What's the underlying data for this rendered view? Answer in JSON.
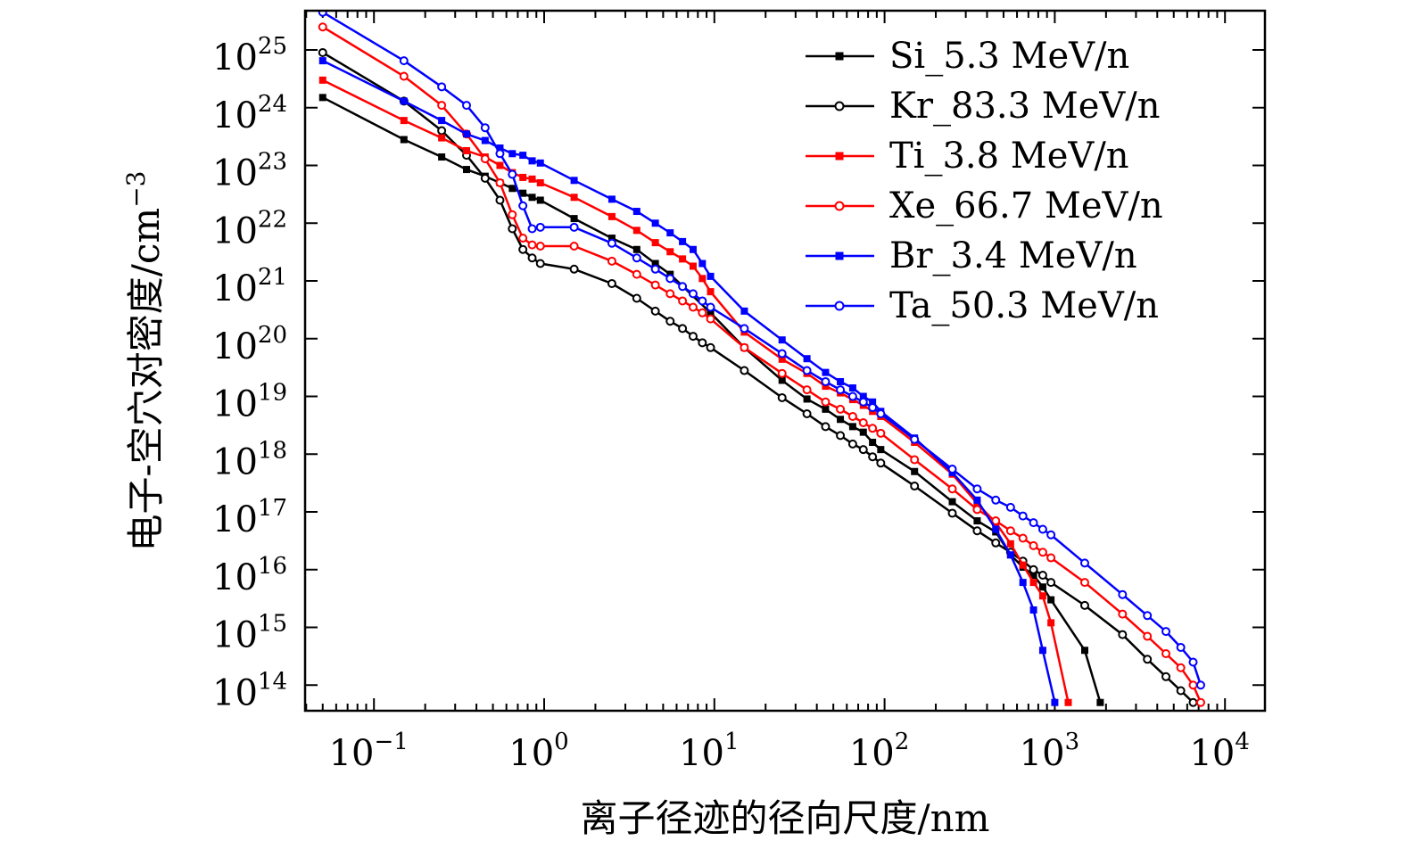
{
  "chart_data": {
    "type": "line",
    "title": "",
    "xlabel": "离子径迹的径向尺度/nm",
    "ylabel": "电子-空穴对密度/cm",
    "ylabel_unit_exp": "−3",
    "xscale": "log",
    "yscale": "log",
    "xlim": [
      0.04,
      13000
    ],
    "ylim": [
      50000000000000.0,
      1.5e+26
    ],
    "legend_position": "top-right",
    "x_ticks": [
      {
        "base": "10",
        "exp": "−1"
      },
      {
        "base": "10",
        "exp": "0"
      },
      {
        "base": "10",
        "exp": "1"
      },
      {
        "base": "10",
        "exp": "2"
      },
      {
        "base": "10",
        "exp": "3"
      },
      {
        "base": "10",
        "exp": "4"
      }
    ],
    "y_ticks": [
      {
        "base": "10",
        "exp": "25"
      },
      {
        "base": "10",
        "exp": "24"
      },
      {
        "base": "10",
        "exp": "23"
      },
      {
        "base": "10",
        "exp": "22"
      },
      {
        "base": "10",
        "exp": "21"
      },
      {
        "base": "10",
        "exp": "20"
      },
      {
        "base": "10",
        "exp": "19"
      },
      {
        "base": "10",
        "exp": "18"
      },
      {
        "base": "10",
        "exp": "17"
      },
      {
        "base": "10",
        "exp": "16"
      },
      {
        "base": "10",
        "exp": "15"
      },
      {
        "base": "10",
        "exp": "14"
      }
    ],
    "series": [
      {
        "name": "Si_5.3 MeV/n",
        "color": "#000000",
        "marker": "square-filled",
        "x": [
          0.05,
          0.15,
          0.25,
          0.35,
          0.45,
          0.55,
          0.65,
          0.75,
          0.85,
          0.95,
          1.5,
          2.5,
          3.5,
          4.5,
          5.5,
          9.5,
          15,
          25,
          35,
          45,
          55,
          65,
          75,
          85,
          95,
          150,
          250,
          350,
          450,
          550,
          650,
          750,
          850,
          950,
          1500,
          1850
        ],
        "y": [
          1.5e+24,
          2.8e+23,
          1.4e+23,
          8.5e+22,
          6.5e+22,
          5e+22,
          4e+22,
          3.3e+22,
          2.8e+22,
          2.5e+22,
          1.2e+22,
          5.5e+21,
          3.5e+21,
          2e+21,
          1.3e+21,
          2.8e+20,
          7e+19,
          1.9e+19,
          9e+18,
          6e+18,
          4e+18,
          3e+18,
          2.4e+18,
          1.6e+18,
          1.2e+18,
          5e+17,
          1.5e+17,
          7e+16,
          4.5e+16,
          1.8e+16,
          1.1e+16,
          8000000000000000.0,
          5000000000000000.0,
          3000000000000000.0,
          400000000000000.0,
          50000000000000.0
        ]
      },
      {
        "name": "Kr_83.3 MeV/n",
        "color": "#000000",
        "marker": "circle-open",
        "x": [
          0.05,
          0.15,
          0.25,
          0.35,
          0.45,
          0.55,
          0.65,
          0.75,
          0.85,
          0.95,
          1.5,
          2.5,
          3.5,
          4.5,
          5.5,
          6.5,
          7.5,
          8.5,
          9.5,
          15,
          25,
          35,
          45,
          55,
          65,
          75,
          85,
          95,
          150,
          250,
          350,
          450,
          550,
          650,
          750,
          850,
          950,
          1500,
          2500,
          3500,
          4500,
          5500,
          6500
        ],
        "y": [
          9e+24,
          1.3e+24,
          4e+23,
          1.5e+23,
          6e+22,
          2.5e+22,
          8e+21,
          3.5e+21,
          2.5e+21,
          2e+21,
          1.6e+21,
          9e+20,
          5e+20,
          3e+20,
          2e+20,
          1.5e+20,
          1.1e+20,
          8.5e+19,
          7e+19,
          2.8e+19,
          9.5e+18,
          5e+18,
          3e+18,
          2.1e+18,
          1.5e+18,
          1.2e+18,
          9e+17,
          7e+17,
          2.8e+17,
          9.5e+16,
          4.7e+16,
          2.9e+16,
          2e+16,
          1.4e+16,
          1e+16,
          8000000000000000.0,
          6000000000000000.0,
          2400000000000000.0,
          750000000000000.0,
          280000000000000.0,
          140000000000000.0,
          80000000000000.0,
          50000000000000.0
        ]
      },
      {
        "name": "Ti_3.8 MeV/n",
        "color": "#ff0000",
        "marker": "square-filled",
        "x": [
          0.05,
          0.15,
          0.25,
          0.35,
          0.45,
          0.55,
          0.65,
          0.75,
          0.85,
          0.95,
          1.5,
          2.5,
          3.5,
          4.5,
          5.5,
          6.5,
          7.5,
          8.5,
          9.5,
          15,
          25,
          35,
          45,
          55,
          65,
          75,
          85,
          95,
          150,
          250,
          350,
          450,
          550,
          650,
          750,
          850,
          950,
          1200
        ],
        "y": [
          3e+24,
          6e+23,
          3e+23,
          1.8e+23,
          1.4e+23,
          1e+23,
          7.5e+22,
          6.2e+22,
          5.8e+22,
          5e+22,
          2.8e+22,
          1.3e+22,
          7.5e+21,
          4.6e+21,
          3.2e+21,
          2.4e+21,
          1.8e+21,
          1.1e+21,
          6.5e+20,
          1.3e+20,
          4.4e+19,
          2.5e+19,
          1.5e+19,
          1.15e+19,
          8.8e+18,
          7e+18,
          5.5e+18,
          4.5e+18,
          1.6e+18,
          4.5e+17,
          1.4e+17,
          6.5e+16,
          2.8e+16,
          1.2e+16,
          6000000000000000.0,
          3500000000000000.0,
          1200000000000000.0,
          50000000000000.0
        ]
      },
      {
        "name": "Xe_66.7 MeV/n",
        "color": "#ff0000",
        "marker": "circle-open",
        "x": [
          0.05,
          0.15,
          0.25,
          0.35,
          0.45,
          0.55,
          0.65,
          0.75,
          0.85,
          0.95,
          1.5,
          2.5,
          3.5,
          4.5,
          5.5,
          6.5,
          7.5,
          8.5,
          9.5,
          15,
          25,
          35,
          45,
          55,
          65,
          75,
          85,
          95,
          150,
          250,
          350,
          450,
          550,
          650,
          750,
          850,
          950,
          1500,
          2500,
          3500,
          4500,
          5500,
          6500,
          7200
        ],
        "y": [
          2.5e+25,
          3.5e+24,
          1.1e+24,
          3.5e+23,
          1.3e+23,
          5e+22,
          1.4e+22,
          5.5e+21,
          4.2e+21,
          4e+21,
          4e+21,
          2.2e+21,
          1.3e+21,
          8.5e+20,
          6e+20,
          4.5e+20,
          3.5e+20,
          2.8e+20,
          2.2e+20,
          7e+19,
          2.5e+19,
          1.3e+19,
          8e+18,
          6e+18,
          4.5e+18,
          3.5e+18,
          2.8e+18,
          2.3e+18,
          8e+17,
          2.5e+17,
          1.1e+17,
          7e+16,
          4.7e+16,
          3.5e+16,
          2.6e+16,
          2e+16,
          1.6e+16,
          6000000000000000.0,
          1700000000000000.0,
          700000000000000.0,
          350000000000000.0,
          200000000000000.0,
          100000000000000.0,
          50000000000000.0
        ]
      },
      {
        "name": "Br_3.4 MeV/n",
        "color": "#0000ff",
        "marker": "square-filled",
        "x": [
          0.05,
          0.15,
          0.25,
          0.35,
          0.45,
          0.55,
          0.65,
          0.75,
          0.85,
          0.95,
          1.5,
          2.5,
          3.5,
          4.5,
          5.5,
          6.5,
          7.5,
          8.5,
          9.5,
          15,
          25,
          35,
          45,
          55,
          65,
          75,
          85,
          95,
          150,
          250,
          350,
          450,
          550,
          650,
          750,
          850,
          1000
        ],
        "y": [
          6.5e+24,
          1.3e+24,
          6e+23,
          3.5e+23,
          2.7e+23,
          2e+23,
          1.6e+23,
          1.5e+23,
          1.2e+23,
          1.1e+23,
          5.5e+22,
          2.6e+22,
          1.6e+22,
          1e+22,
          6.8e+21,
          4.8e+21,
          3.5e+21,
          2e+21,
          1.2e+21,
          3e+20,
          9.5e+19,
          4.5e+19,
          2.6e+19,
          1.8e+19,
          1.4e+19,
          1e+19,
          8e+18,
          5.5e+18,
          1.9e+18,
          4.8e+17,
          1.6e+17,
          5e+16,
          1.8e+16,
          6000000000000000.0,
          2000000000000000.0,
          400000000000000.0,
          50000000000000.0
        ]
      },
      {
        "name": "Ta_50.3 MeV/n",
        "color": "#0000ff",
        "marker": "circle-open",
        "x": [
          0.05,
          0.15,
          0.25,
          0.35,
          0.45,
          0.55,
          0.65,
          0.75,
          0.85,
          0.95,
          1.5,
          2.5,
          3.5,
          4.5,
          5.5,
          6.5,
          7.5,
          8.5,
          9.5,
          15,
          25,
          35,
          45,
          55,
          65,
          75,
          85,
          95,
          150,
          250,
          350,
          450,
          550,
          650,
          750,
          850,
          950,
          1500,
          2500,
          3500,
          4500,
          5500,
          6500,
          7200
        ],
        "y": [
          4.5e+25,
          6.5e+24,
          2.3e+24,
          1.1e+24,
          4.5e+23,
          1.6e+23,
          7e+22,
          2e+22,
          8e+21,
          8.5e+21,
          8.5e+21,
          4.5e+21,
          2.5e+21,
          1.6e+21,
          1.1e+21,
          8e+20,
          6e+20,
          4.5e+20,
          3.5e+20,
          1.5e+20,
          5.5e+19,
          2.8e+19,
          1.8e+19,
          1.3e+19,
          1e+19,
          8e+18,
          6.4e+18,
          5e+18,
          1.8e+18,
          5.5e+17,
          2.5e+17,
          1.6e+17,
          1.2e+17,
          8.5e+16,
          6.5e+16,
          5e+16,
          4e+16,
          1.3e+16,
          3700000000000000.0,
          1600000000000000.0,
          850000000000000.0,
          450000000000000.0,
          250000000000000.0,
          100000000000000.0
        ]
      }
    ]
  }
}
